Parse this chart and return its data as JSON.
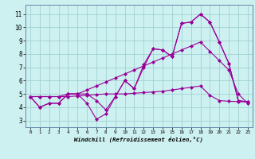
{
  "xlabel": "Windchill (Refroidissement éolien,°C)",
  "bg_color": "#cdf0f0",
  "line_color": "#990099",
  "grid_color": "#99cccc",
  "x_ticks": [
    0,
    1,
    2,
    3,
    4,
    5,
    6,
    7,
    8,
    9,
    10,
    11,
    12,
    13,
    14,
    15,
    16,
    17,
    18,
    19,
    20,
    21,
    22,
    23
  ],
  "y_ticks": [
    3,
    4,
    5,
    6,
    7,
    8,
    9,
    10,
    11
  ],
  "xlim": [
    -0.5,
    23.5
  ],
  "ylim": [
    2.5,
    11.7
  ],
  "series": [
    [
      4.8,
      4.0,
      4.3,
      4.3,
      5.0,
      5.0,
      5.0,
      4.5,
      3.8,
      4.8,
      6.0,
      5.4,
      7.0,
      8.4,
      8.3,
      7.8,
      10.3,
      10.4,
      11.0,
      10.4,
      8.9,
      7.3,
      4.5,
      4.4
    ],
    [
      4.8,
      4.0,
      4.3,
      4.3,
      5.0,
      5.0,
      4.3,
      3.1,
      3.5,
      4.8,
      6.0,
      5.4,
      7.2,
      8.4,
      8.3,
      7.8,
      10.3,
      10.4,
      11.0,
      10.4,
      8.9,
      7.3,
      4.5,
      4.4
    ],
    [
      4.8,
      4.8,
      4.8,
      4.8,
      4.8,
      4.85,
      4.9,
      4.95,
      5.0,
      5.0,
      5.0,
      5.05,
      5.1,
      5.15,
      5.2,
      5.3,
      5.4,
      5.5,
      5.6,
      4.9,
      4.5,
      4.45,
      4.42,
      4.4
    ],
    [
      4.8,
      4.8,
      4.8,
      4.8,
      5.0,
      5.0,
      5.3,
      5.6,
      5.9,
      6.2,
      6.5,
      6.8,
      7.1,
      7.4,
      7.7,
      8.0,
      8.3,
      8.6,
      8.9,
      8.2,
      7.5,
      6.8,
      5.0,
      4.3
    ]
  ]
}
